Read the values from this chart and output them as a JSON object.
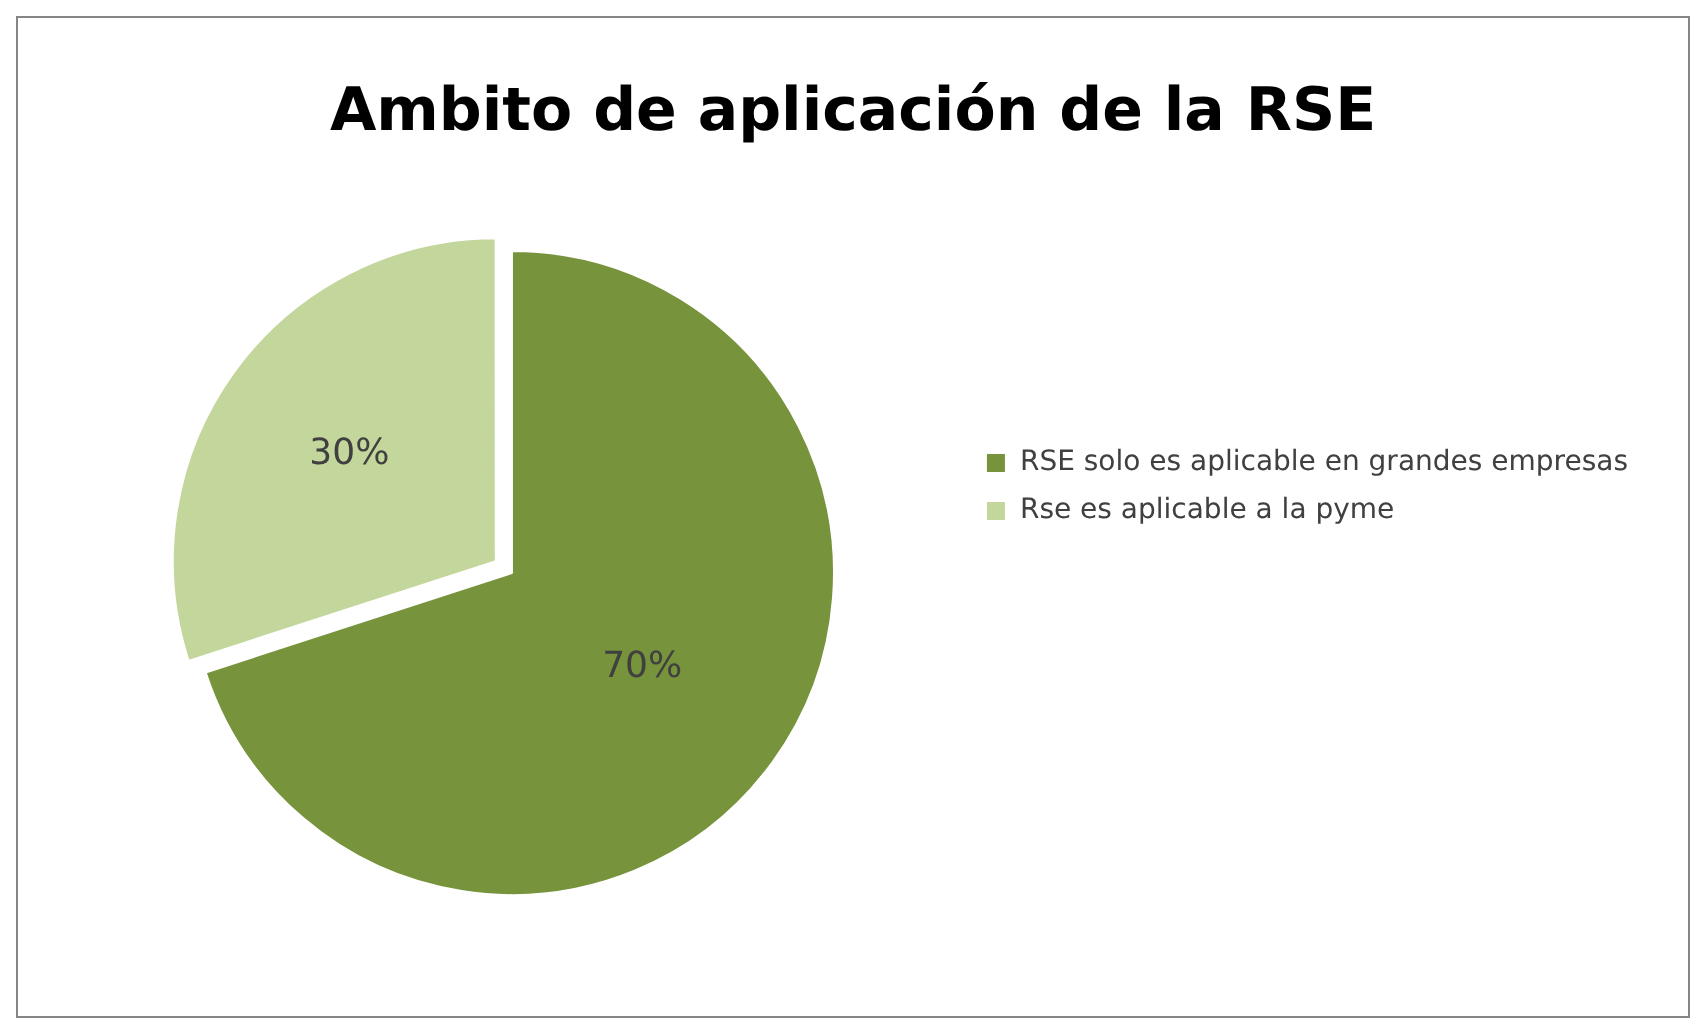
{
  "chart_data": {
    "type": "pie",
    "title": "Ambito de aplicación de la RSE",
    "categories": [
      "RSE solo es aplicable en grandes empresas",
      "Rse es aplicable a la pyme"
    ],
    "values": [
      70,
      30
    ],
    "colors": [
      "#77933c",
      "#c3d69b"
    ],
    "value_labels": [
      "70%",
      "30%"
    ],
    "legend": "right"
  }
}
